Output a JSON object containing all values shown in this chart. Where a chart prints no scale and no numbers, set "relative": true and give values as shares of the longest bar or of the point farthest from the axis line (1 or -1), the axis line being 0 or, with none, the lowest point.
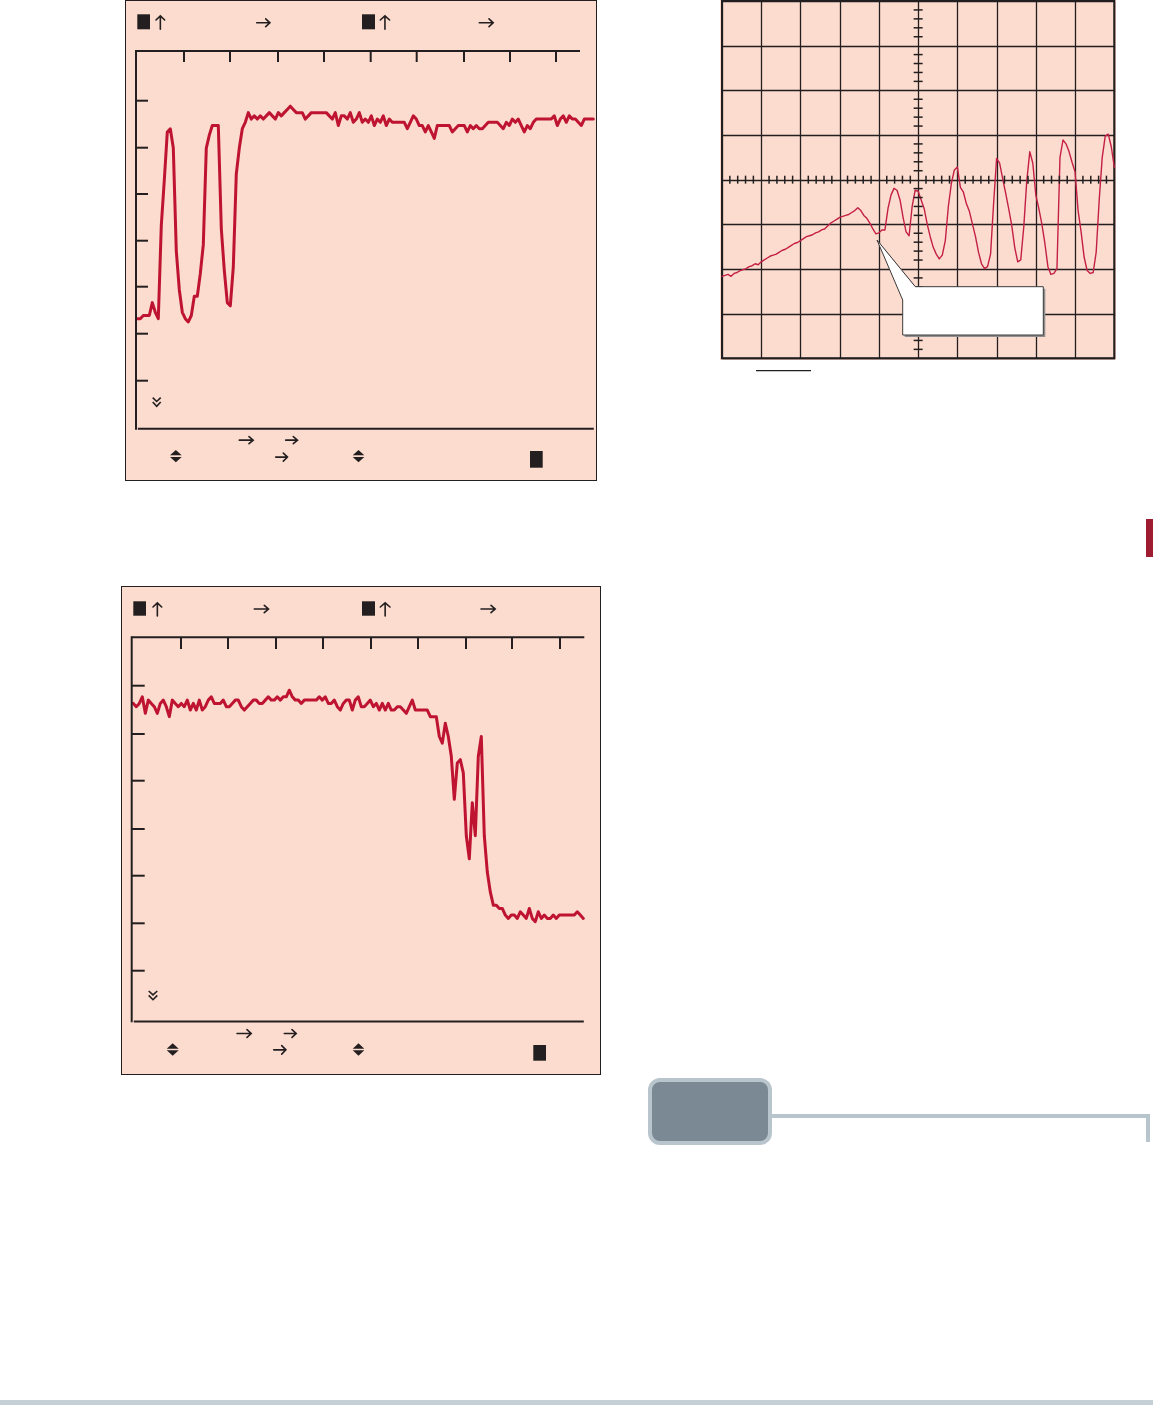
{
  "chart_data": [
    {
      "type": "line",
      "relative": true,
      "color": "#be1432",
      "categories": [
        null,
        null,
        null,
        null,
        null,
        null,
        null,
        null,
        null,
        null,
        null,
        null,
        null,
        null,
        null,
        null,
        null,
        null,
        null,
        null,
        null,
        null,
        null,
        null,
        null,
        null,
        null,
        null,
        null,
        null,
        null,
        null,
        null,
        null,
        null,
        null,
        null,
        null,
        null,
        null,
        null,
        null,
        null,
        null,
        null,
        null,
        null,
        null,
        null,
        null,
        null,
        null,
        null,
        null,
        null,
        null,
        null,
        null,
        null,
        null,
        null,
        null,
        null,
        null,
        null,
        null,
        null,
        null,
        null,
        null,
        null,
        null,
        null,
        null,
        null,
        null,
        null,
        null,
        null,
        null,
        null,
        null,
        null,
        null,
        null,
        null,
        null,
        null,
        null,
        null,
        null,
        null,
        null,
        null,
        null,
        null,
        null,
        null,
        null,
        null,
        null,
        null,
        null,
        null,
        null,
        null,
        null,
        null,
        null,
        null,
        null,
        null,
        null,
        null,
        null,
        null,
        null,
        null,
        null,
        null,
        null,
        null,
        null,
        null,
        null,
        null,
        null,
        null,
        null,
        null,
        null,
        null,
        null,
        null,
        null,
        null,
        null,
        null,
        null,
        null,
        null,
        null,
        null,
        null,
        null,
        null,
        null,
        null,
        null,
        null,
        null,
        null,
        null
      ],
      "values": [
        0.34,
        0.34,
        0.35,
        0.35,
        0.35,
        0.39,
        0.36,
        0.34,
        0.63,
        0.77,
        0.92,
        0.93,
        0.87,
        0.55,
        0.43,
        0.36,
        0.34,
        0.33,
        0.35,
        0.41,
        0.41,
        0.48,
        0.57,
        0.87,
        0.91,
        0.94,
        0.94,
        0.94,
        0.62,
        0.49,
        0.39,
        0.38,
        0.5,
        0.79,
        0.87,
        0.93,
        0.95,
        0.98,
        0.96,
        0.97,
        0.96,
        0.97,
        0.96,
        0.97,
        0.98,
        0.97,
        0.96,
        0.98,
        0.97,
        0.98,
        0.99,
        1.0,
        0.99,
        0.98,
        0.98,
        0.98,
        0.96,
        0.97,
        0.98,
        0.98,
        0.98,
        0.98,
        0.98,
        0.98,
        0.97,
        0.96,
        0.98,
        0.94,
        0.97,
        0.97,
        0.96,
        0.98,
        0.95,
        0.96,
        0.98,
        0.95,
        0.96,
        0.95,
        0.97,
        0.94,
        0.96,
        0.95,
        0.97,
        0.94,
        0.96,
        0.95,
        0.95,
        0.95,
        0.95,
        0.95,
        0.93,
        0.95,
        0.97,
        0.96,
        0.94,
        0.94,
        0.92,
        0.94,
        0.92,
        0.9,
        0.94,
        0.94,
        0.94,
        0.94,
        0.94,
        0.92,
        0.93,
        0.94,
        0.94,
        0.94,
        0.92,
        0.94,
        0.93,
        0.94,
        0.93,
        0.93,
        0.94,
        0.95,
        0.95,
        0.95,
        0.95,
        0.94,
        0.93,
        0.95,
        0.94,
        0.96,
        0.95,
        0.96,
        0.94,
        0.92,
        0.94,
        0.93,
        0.95,
        0.96,
        0.96,
        0.96,
        0.96,
        0.96,
        0.96,
        0.97,
        0.94,
        0.96,
        0.97,
        0.95,
        0.97,
        0.96,
        0.96,
        0.95,
        0.94,
        0.96,
        0.96,
        0.96,
        0.96
      ]
    },
    {
      "type": "line",
      "relative": true,
      "color": "#c41f44",
      "grid": true,
      "categories": [
        null,
        null,
        null,
        null,
        null,
        null,
        null,
        null,
        null,
        null,
        null,
        null,
        null,
        null,
        null,
        null,
        null,
        null,
        null,
        null,
        null,
        null,
        null,
        null,
        null,
        null,
        null,
        null,
        null,
        null,
        null,
        null,
        null,
        null,
        null,
        null,
        null,
        null,
        null,
        null,
        null,
        null,
        null,
        null,
        null,
        null,
        null,
        null,
        null,
        null,
        null,
        null,
        null,
        null,
        null,
        null,
        null,
        null,
        null,
        null,
        null,
        null,
        null,
        null,
        null,
        null,
        null,
        null,
        null,
        null,
        null,
        null,
        null,
        null,
        null,
        null,
        null,
        null,
        null,
        null,
        null,
        null,
        null,
        null,
        null,
        null,
        null,
        null,
        null,
        null,
        null,
        null,
        null,
        null,
        null,
        null,
        null,
        null,
        null,
        null,
        null,
        null,
        null,
        null,
        null,
        null,
        null,
        null,
        null,
        null,
        null,
        null,
        null,
        null,
        null,
        null,
        null,
        null,
        null,
        null,
        null,
        null,
        null,
        null,
        null,
        null,
        null,
        null,
        null,
        null,
        null
      ],
      "values": [
        -1.0,
        -0.99,
        -0.98,
        -1.0,
        -0.97,
        -0.96,
        -0.94,
        -0.93,
        -0.92,
        -0.9,
        -0.89,
        -0.87,
        -0.88,
        -0.85,
        -0.83,
        -0.81,
        -0.79,
        -0.78,
        -0.77,
        -0.75,
        -0.73,
        -0.72,
        -0.7,
        -0.68,
        -0.66,
        -0.65,
        -0.63,
        -0.61,
        -0.59,
        -0.58,
        -0.57,
        -0.55,
        -0.54,
        -0.52,
        -0.51,
        -0.48,
        -0.45,
        -0.43,
        -0.41,
        -0.39,
        -0.38,
        -0.37,
        -0.36,
        -0.34,
        -0.32,
        -0.29,
        -0.32,
        -0.37,
        -0.4,
        -0.45,
        -0.51,
        -0.56,
        -0.55,
        -0.52,
        -0.52,
        -0.3,
        -0.16,
        -0.09,
        -0.11,
        -0.21,
        -0.39,
        -0.54,
        -0.58,
        -0.28,
        -0.11,
        -0.12,
        -0.21,
        -0.3,
        -0.46,
        -0.59,
        -0.7,
        -0.77,
        -0.82,
        -0.78,
        -0.63,
        -0.28,
        -0.04,
        0.1,
        0.13,
        -0.08,
        -0.13,
        -0.25,
        -0.33,
        -0.46,
        -0.59,
        -0.75,
        -0.87,
        -0.92,
        -0.9,
        -0.77,
        -0.25,
        0.22,
        0.17,
        0.01,
        -0.14,
        -0.3,
        -0.47,
        -0.7,
        -0.85,
        -0.83,
        -0.49,
        -0.01,
        0.29,
        0.17,
        -0.16,
        -0.3,
        -0.46,
        -0.66,
        -0.9,
        -0.98,
        -0.97,
        -0.92,
        0.23,
        0.41,
        0.37,
        0.29,
        0.18,
        0.08,
        -0.32,
        -0.54,
        -0.8,
        -0.94,
        -0.97,
        -0.96,
        -0.75,
        -0.21,
        0.23,
        0.45,
        0.47,
        0.34,
        0.13
      ]
    },
    {
      "type": "line",
      "relative": true,
      "color": "#be1432",
      "categories": [
        null,
        null,
        null,
        null,
        null,
        null,
        null,
        null,
        null,
        null,
        null,
        null,
        null,
        null,
        null,
        null,
        null,
        null,
        null,
        null,
        null,
        null,
        null,
        null,
        null,
        null,
        null,
        null,
        null,
        null,
        null,
        null,
        null,
        null,
        null,
        null,
        null,
        null,
        null,
        null,
        null,
        null,
        null,
        null,
        null,
        null,
        null,
        null,
        null,
        null,
        null,
        null,
        null,
        null,
        null,
        null,
        null,
        null,
        null,
        null,
        null,
        null,
        null,
        null,
        null,
        null,
        null,
        null,
        null,
        null,
        null,
        null,
        null,
        null,
        null,
        null,
        null,
        null,
        null,
        null,
        null,
        null,
        null,
        null,
        null,
        null,
        null,
        null,
        null,
        null,
        null,
        null,
        null,
        null,
        null,
        null,
        null,
        null,
        null,
        null,
        null,
        null,
        null,
        null,
        null,
        null,
        null,
        null,
        null,
        null,
        null,
        null,
        null,
        null,
        null,
        null,
        null,
        null,
        null,
        null,
        null,
        null,
        null,
        null,
        null,
        null,
        null,
        null,
        null,
        null,
        null,
        null,
        null,
        null,
        null,
        null,
        null,
        null,
        null,
        null,
        null,
        null,
        null,
        null,
        null,
        null,
        null,
        null,
        null,
        null,
        null
      ],
      "values": [
        0.96,
        0.95,
        0.96,
        0.98,
        0.93,
        0.97,
        0.96,
        0.95,
        0.93,
        0.96,
        0.97,
        0.95,
        0.92,
        0.97,
        0.96,
        0.95,
        0.96,
        0.95,
        0.97,
        0.94,
        0.96,
        0.94,
        0.97,
        0.94,
        0.95,
        0.97,
        0.98,
        0.96,
        0.96,
        0.96,
        0.97,
        0.95,
        0.95,
        0.96,
        0.97,
        0.97,
        0.95,
        0.94,
        0.95,
        0.96,
        0.97,
        0.97,
        0.96,
        0.96,
        0.97,
        0.98,
        0.97,
        0.97,
        0.98,
        0.97,
        0.98,
        0.98,
        1.0,
        0.98,
        0.97,
        0.97,
        0.96,
        0.97,
        0.97,
        0.97,
        0.97,
        0.97,
        0.98,
        0.97,
        0.98,
        0.96,
        0.96,
        0.97,
        0.95,
        0.94,
        0.96,
        0.97,
        0.97,
        0.94,
        0.97,
        0.98,
        0.95,
        0.95,
        0.96,
        0.97,
        0.95,
        0.96,
        0.94,
        0.96,
        0.94,
        0.96,
        0.94,
        0.94,
        0.95,
        0.95,
        0.94,
        0.93,
        0.95,
        0.97,
        0.94,
        0.94,
        0.94,
        0.94,
        0.94,
        0.92,
        0.92,
        0.92,
        0.86,
        0.84,
        0.9,
        0.86,
        0.8,
        0.67,
        0.78,
        0.79,
        0.75,
        0.56,
        0.49,
        0.66,
        0.56,
        0.8,
        0.86,
        0.56,
        0.45,
        0.39,
        0.35,
        0.35,
        0.34,
        0.34,
        0.32,
        0.31,
        0.32,
        0.32,
        0.31,
        0.33,
        0.32,
        0.31,
        0.34,
        0.31,
        0.3,
        0.33,
        0.31,
        0.32,
        0.31,
        0.31,
        0.32,
        0.31,
        0.32,
        0.32,
        0.32,
        0.32,
        0.32,
        0.32,
        0.33,
        0.32,
        0.31
      ]
    }
  ]
}
